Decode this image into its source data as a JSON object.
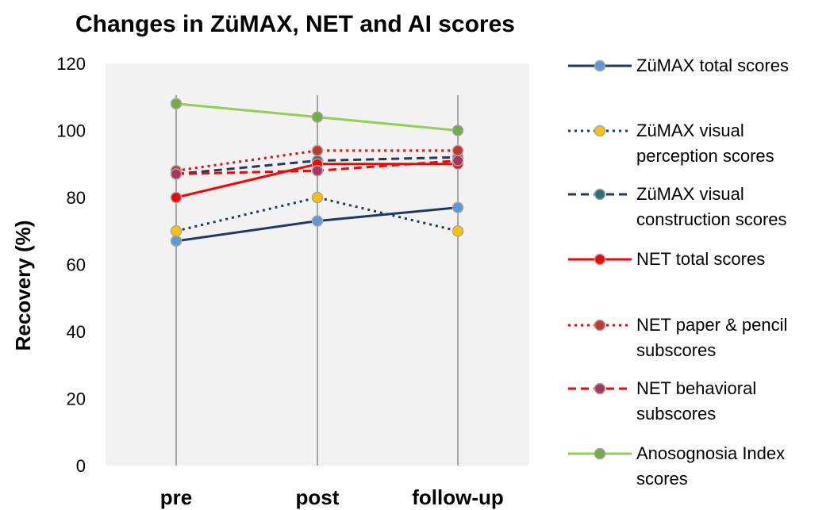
{
  "chart_data": {
    "type": "line",
    "title": "Changes in ZüMAX, NET and AI scores",
    "y_label": "Recovery (%)",
    "categories": [
      "pre",
      "post",
      "follow-up"
    ],
    "ylim": [
      0,
      120
    ],
    "yticks": [
      0,
      20,
      40,
      60,
      80,
      100,
      120
    ],
    "legend": "right",
    "series": [
      {
        "name": "ZüMAX total scores",
        "color": "#1f3864",
        "marker_color": "#5b9bd5",
        "dash": "solid",
        "values": [
          67,
          73,
          77
        ]
      },
      {
        "name": "ZüMAX visual perception scores",
        "color": "#1f3864",
        "marker_color": "#ffc000",
        "dash": "dotted",
        "values": [
          70,
          80,
          70
        ]
      },
      {
        "name": "ZüMAX visual construction scores",
        "color": "#1f3864",
        "marker_color": "#2f6f73",
        "dash": "dashed",
        "values": [
          87,
          91,
          92
        ]
      },
      {
        "name": "NET total scores",
        "color": "#ff0000",
        "marker_color": "#ff0000",
        "dash": "solid",
        "values": [
          80,
          90,
          90
        ]
      },
      {
        "name": "NET paper & pencil subscores",
        "color": "#ff0000",
        "marker_color": "#c0392b",
        "dash": "dotted",
        "values": [
          88,
          94,
          94
        ]
      },
      {
        "name": "NET behavioral subscores",
        "color": "#ff0000",
        "marker_color": "#b03060",
        "dash": "dashed",
        "values": [
          87,
          88,
          91
        ]
      },
      {
        "name": "Anosognosia Index scores",
        "color": "#92d050",
        "marker_color": "#70ad47",
        "dash": "solid",
        "values": [
          108,
          104,
          100
        ]
      }
    ]
  }
}
